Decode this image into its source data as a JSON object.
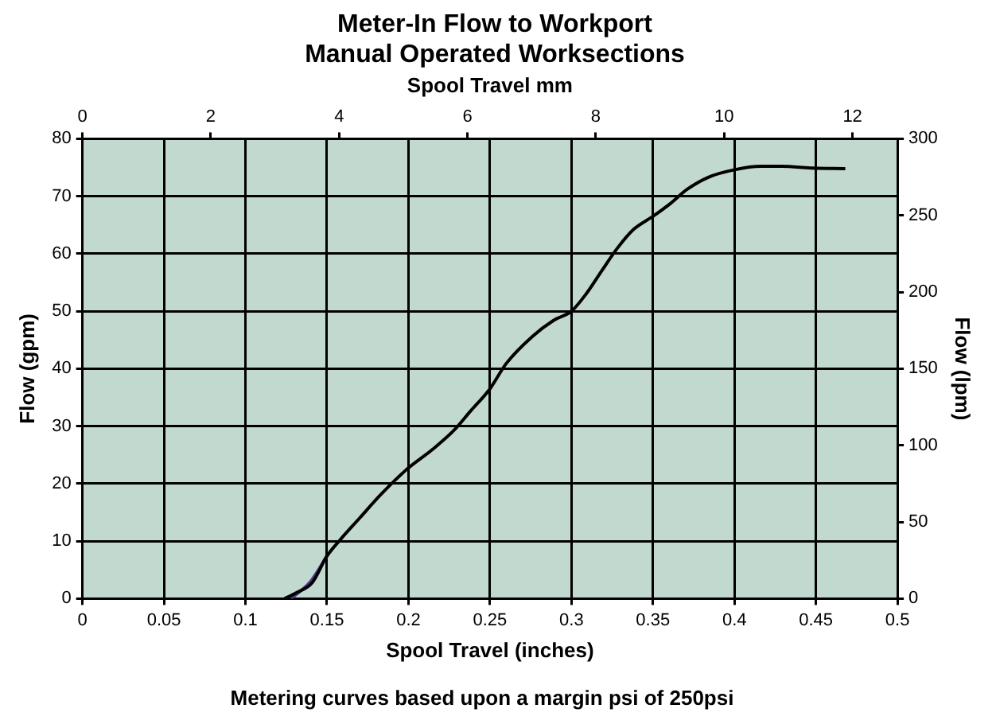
{
  "chart_data": {
    "type": "line",
    "title": "Meter-In Flow to Workport\nManual Operated Worksections",
    "xlabel": "Spool Travel (inches)",
    "ylabel": "Flow (gpm)",
    "y2label": "Flow (lpm)",
    "x2label": "Spool Travel mm",
    "annotations": [
      "Metering curves based upon a margin psi of 250psi"
    ],
    "xlim": [
      0,
      0.5
    ],
    "xticks": [
      0,
      0.05,
      {
        "value": 0.1,
        "label": "0.1"
      },
      0.15,
      {
        "value": 0.2,
        "label": "0.2"
      },
      0.25,
      {
        "value": 0.3,
        "label": "0.3"
      },
      0.35,
      {
        "value": 0.4,
        "label": "0.4"
      },
      0.45,
      {
        "value": 0.5,
        "label": "0.5"
      }
    ],
    "ylim": [
      0,
      80
    ],
    "yticks": [
      0,
      10,
      20,
      30,
      40,
      50,
      60,
      70,
      80
    ],
    "x2lim": [
      0,
      12.7
    ],
    "x2ticks": [
      0,
      2,
      4,
      6,
      8,
      10,
      12
    ],
    "y2lim": [
      0,
      300
    ],
    "y2ticks": [
      0,
      50,
      100,
      150,
      200,
      250,
      300
    ],
    "grid": true,
    "legend": false,
    "marker": "none",
    "line_style": "solid",
    "series": [
      {
        "color": "#000000",
        "x": [
          0.124,
          0.131,
          0.141,
          0.15,
          0.158,
          0.17,
          0.183,
          0.199,
          0.215,
          0.228,
          0.238,
          0.25,
          0.26,
          0.276,
          0.289,
          0.3,
          0.309,
          0.319,
          0.328,
          0.338,
          0.35,
          0.361,
          0.371,
          0.384,
          0.4,
          0.416,
          0.429,
          0.448,
          0.468
        ],
        "values": [
          0,
          1,
          2.8,
          7.4,
          10.2,
          14,
          18.1,
          22.5,
          26,
          29.3,
          32.6,
          36.5,
          40.9,
          45.6,
          48.4,
          50,
          53,
          57.2,
          60.9,
          64.2,
          66.5,
          68.8,
          71.2,
          73.3,
          74.6,
          75.2,
          75.2,
          74.9,
          74.8
        ]
      },
      {
        "color": "#4b3f8c",
        "x": [
          0.128,
          0.14,
          0.15
        ],
        "values": [
          0,
          3,
          7.4
        ]
      }
    ]
  }
}
